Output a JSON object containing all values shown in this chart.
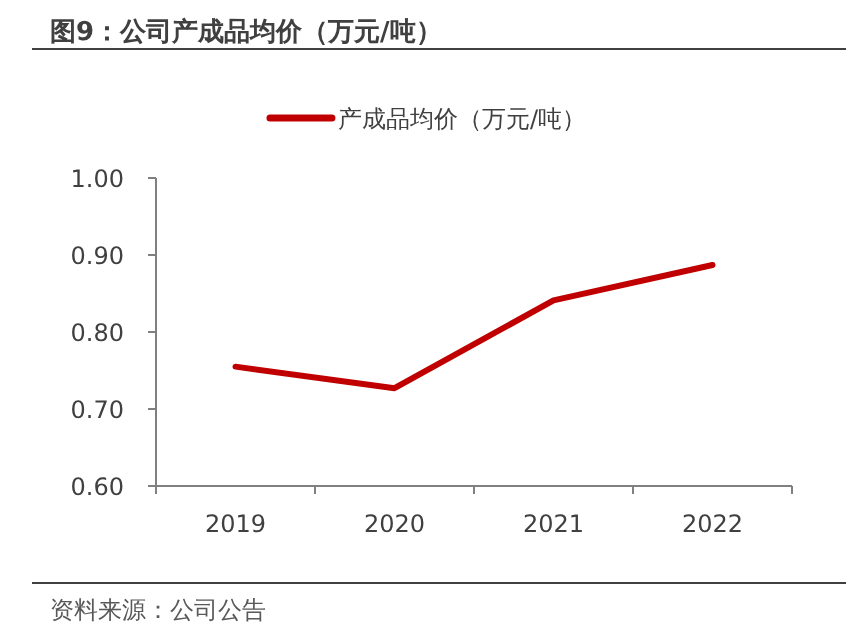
{
  "chart_data": {
    "type": "line",
    "title": "图9：公司产成品均价（万元/吨）",
    "annotations": [
      "资料来源：公司公告"
    ],
    "categories": [
      "2019",
      "2020",
      "2021",
      "2022"
    ],
    "series": [
      {
        "name": "产成品均价（万元/吨）",
        "color": "#c00000",
        "values": [
          0.755,
          0.727,
          0.841,
          0.887
        ]
      }
    ],
    "ylim": [
      0.6,
      1.0
    ],
    "yticks": [
      {
        "value": 0.6,
        "label": "0.60"
      },
      {
        "value": 0.7,
        "label": "0.70"
      },
      {
        "value": 0.8,
        "label": "0.80"
      },
      {
        "value": 0.9,
        "label": "0.90"
      },
      {
        "value": 1.0,
        "label": "1.00"
      }
    ],
    "legend": "top",
    "grid": false,
    "marker": "none",
    "line_style": "solid"
  }
}
